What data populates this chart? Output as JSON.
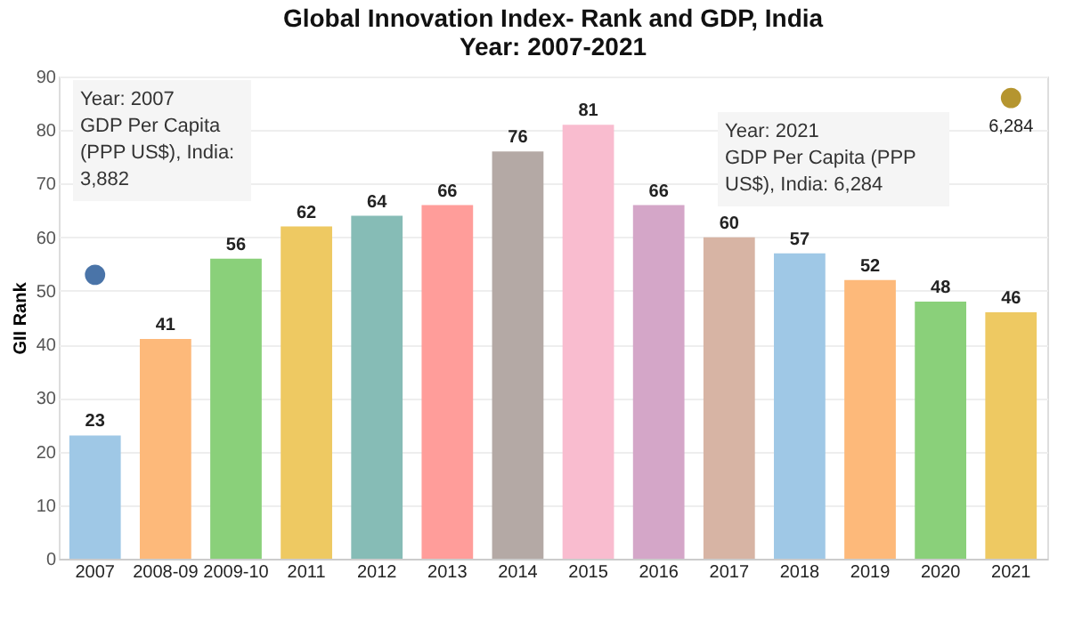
{
  "chart_data": {
    "type": "bar",
    "title": [
      "Global Innovation Index- Rank and GDP, India",
      "Year: 2007-2021"
    ],
    "ylabel": "GII Rank",
    "categories": [
      "2007",
      "2008-09",
      "2009-10",
      "2011",
      "2012",
      "2013",
      "2014",
      "2015",
      "2016",
      "2017",
      "2018",
      "2019",
      "2020",
      "2021"
    ],
    "values": [
      23,
      41,
      56,
      62,
      64,
      66,
      76,
      81,
      66,
      60,
      57,
      52,
      48,
      46
    ],
    "colors": [
      "#9fc8e6",
      "#fdb97a",
      "#8ad07a",
      "#eec962",
      "#86bcb6",
      "#ff9d9a",
      "#b4a9a5",
      "#f9bccf",
      "#d4a6c8",
      "#d7b4a4",
      "#9fc8e6",
      "#fdb97a",
      "#8ad07a",
      "#eec962"
    ],
    "data_labels": true,
    "series": [
      {
        "type": "scatter",
        "colors": [
          "#4a74a8",
          null,
          null,
          null,
          null,
          null,
          null,
          null,
          null,
          null,
          null,
          null,
          null,
          "#b5952f"
        ],
        "values": [
          53,
          null,
          null,
          null,
          null,
          null,
          null,
          null,
          null,
          null,
          null,
          null,
          null,
          86
        ],
        "value_labels": [
          null,
          null,
          null,
          null,
          null,
          null,
          null,
          null,
          null,
          null,
          null,
          null,
          null,
          null
        ]
      }
    ],
    "annotations": [
      "Year: 2007\nGDP Per Capita\n(PPP US$), India:\n3,882",
      "Year: 2021\nGDP Per Capita (PPP\nUS$), India: 6,284",
      "6,284"
    ],
    "ylim": [
      0,
      90
    ],
    "yticks": [
      0,
      10,
      20,
      30,
      40,
      50,
      60,
      70,
      80,
      90
    ],
    "grid": "y"
  }
}
